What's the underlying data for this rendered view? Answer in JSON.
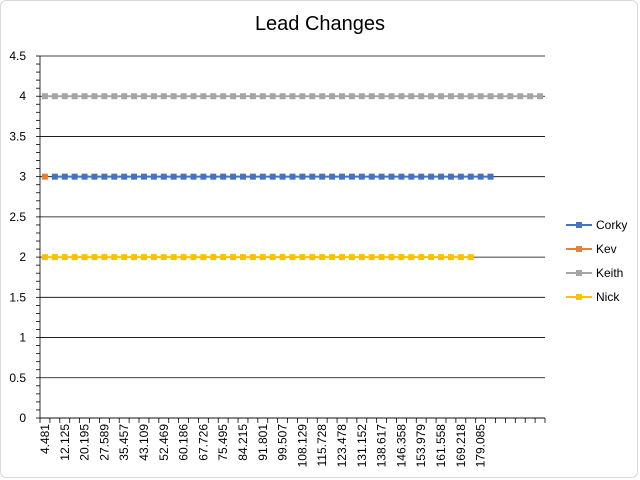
{
  "chart_data": {
    "type": "line",
    "title": "Lead Changes",
    "xlabel": "",
    "ylabel": "",
    "ylim": [
      0,
      4.5
    ],
    "y_ticks": [
      "0",
      "0.5",
      "1",
      "1.5",
      "2",
      "2.5",
      "3",
      "3.5",
      "4",
      "4.5"
    ],
    "x_tick_labels": [
      "4.481",
      "12.125",
      "20.195",
      "27.589",
      "35.457",
      "43.109",
      "52.469",
      "60.186",
      "67.726",
      "75.495",
      "84.215",
      "91.801",
      "99.507",
      "108.129",
      "115.728",
      "123.478",
      "131.152",
      "138.617",
      "146.358",
      "153.979",
      "161.558",
      "169.218",
      "179.085"
    ],
    "category_count": 51,
    "grid": true,
    "legend_position": "right",
    "series": [
      {
        "name": "Corky",
        "color": "#4472C4",
        "value": 3,
        "start_index": 1,
        "end_index": 45
      },
      {
        "name": "Kev",
        "color": "#ED7D31",
        "value": 3,
        "start_index": 0,
        "end_index": 0
      },
      {
        "name": "Keith",
        "color": "#A5A5A5",
        "value": 4,
        "start_index": 0,
        "end_index": 50
      },
      {
        "name": "Nick",
        "color": "#FFC000",
        "value": 2,
        "start_index": 0,
        "end_index": 43
      }
    ]
  }
}
